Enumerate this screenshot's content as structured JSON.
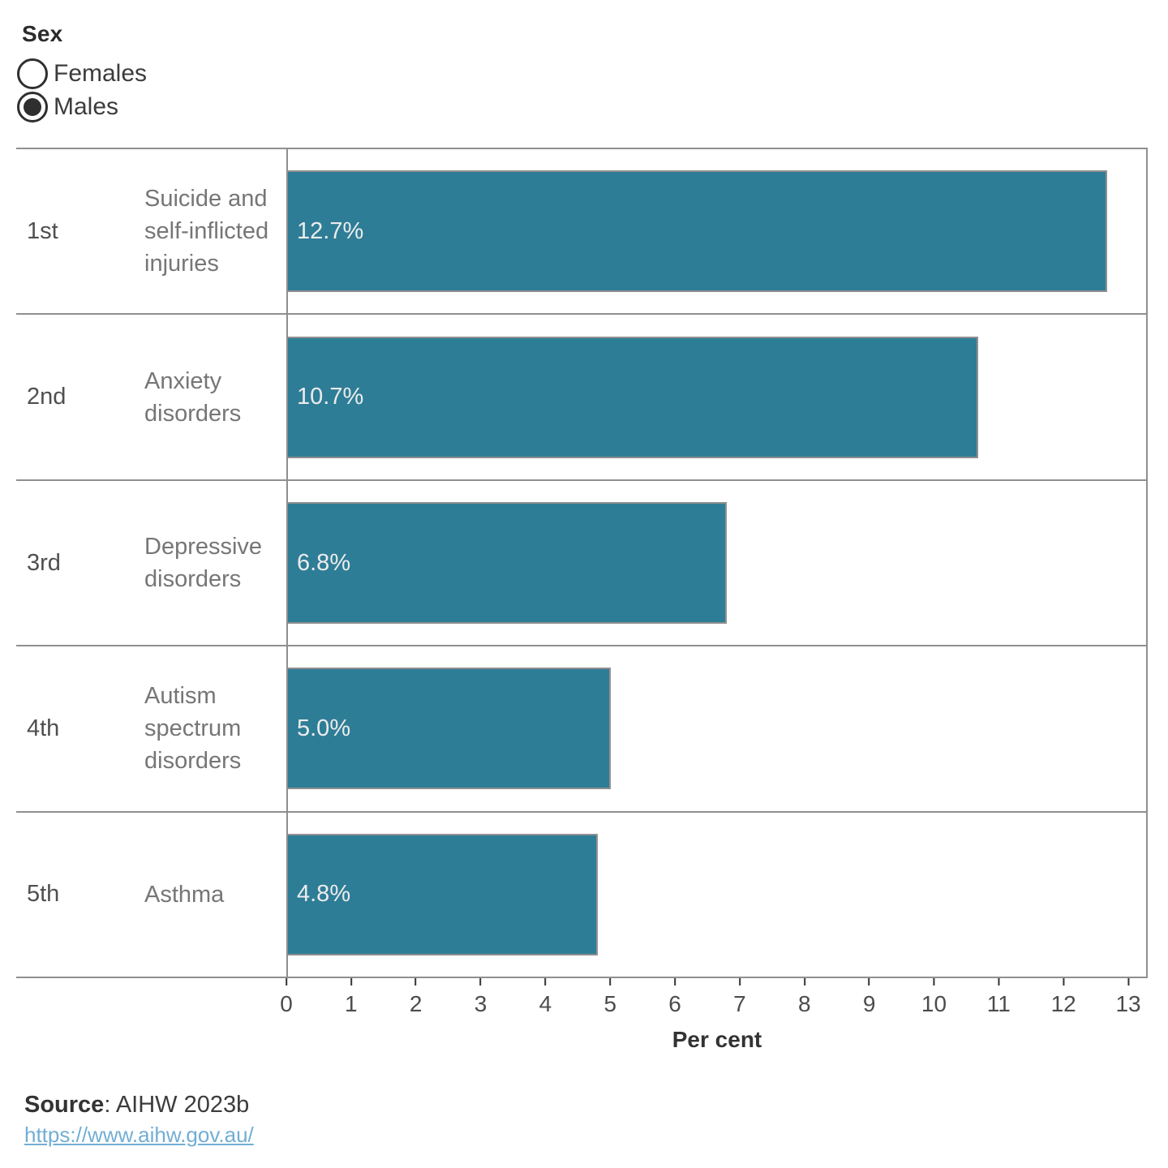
{
  "legend": {
    "title": "Sex",
    "options": [
      {
        "label": "Females",
        "selected": false
      },
      {
        "label": "Males",
        "selected": true
      }
    ]
  },
  "chart_data": {
    "type": "bar",
    "orientation": "horizontal",
    "rows": [
      {
        "rank": "1st",
        "condition": "Suicide and self-inflicted injuries",
        "value": 12.7,
        "value_label": "12.7%"
      },
      {
        "rank": "2nd",
        "condition": "Anxiety disorders",
        "value": 10.7,
        "value_label": "10.7%"
      },
      {
        "rank": "3rd",
        "condition": "Depressive disorders",
        "value": 6.8,
        "value_label": "6.8%"
      },
      {
        "rank": "4th",
        "condition": "Autism spectrum disorders",
        "value": 5.0,
        "value_label": "5.0%"
      },
      {
        "rank": "5th",
        "condition": "Asthma",
        "value": 4.8,
        "value_label": "4.8%"
      }
    ],
    "xlabel": "Per cent",
    "x_ticks": [
      0,
      1,
      2,
      3,
      4,
      5,
      6,
      7,
      8,
      9,
      10,
      11,
      12,
      13
    ],
    "xlim": [
      0,
      13.3
    ],
    "grid": false,
    "bar_color": "#2e7d97",
    "bar_border_color": "#8f8f8f",
    "value_label_color": "#ececec"
  },
  "source": {
    "prefix": "Source",
    "rest": ": AIHW 2023b",
    "link": "https://www.aihw.gov.au/"
  }
}
